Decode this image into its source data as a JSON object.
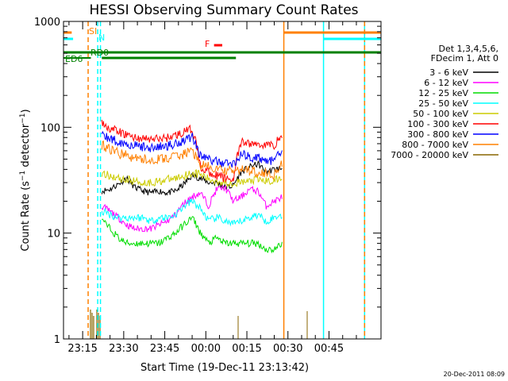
{
  "chart_data": {
    "type": "line",
    "title": "HESSI Observing Summary Count Rates",
    "xlabel": "Start Time (19-Dec-11 23:13:42)",
    "ylabel_parts": [
      "Count Rate (s",
      "−1",
      " detector",
      "−1",
      ")"
    ],
    "yscale": "log",
    "ylim": [
      1,
      1000
    ],
    "xlim_minutes": [
      23.0,
      92.0
    ],
    "y_ticks": [
      {
        "label": "1",
        "value": 1
      },
      {
        "label": "10",
        "value": 10
      },
      {
        "label": "100",
        "value": 100
      },
      {
        "label": "1000",
        "value": 1000
      }
    ],
    "x_ticks": [
      {
        "label": "23:15",
        "m": 15
      },
      {
        "label": "23:30",
        "m": 30
      },
      {
        "label": "23:45",
        "m": 45
      },
      {
        "label": "00:00",
        "m": 60
      },
      {
        "label": "00:15",
        "m": 75
      },
      {
        "label": "00:30",
        "m": 90
      },
      {
        "label": "00:45",
        "m": 105
      }
    ],
    "legend_header": [
      "Det 1,3,4,5,6,",
      "FDecim 1, Att 0"
    ],
    "series": [
      {
        "name": "3 - 6 keV",
        "color": "#000000",
        "values": [
          25,
          26,
          29,
          33,
          27,
          25,
          24,
          25,
          24,
          25,
          29,
          35,
          33,
          30,
          30,
          27,
          28,
          38,
          42,
          45,
          38,
          40,
          41
        ]
      },
      {
        "name": "6 - 12 keV",
        "color": "#ff00ff",
        "values": [
          18,
          16,
          14,
          12,
          11,
          11,
          11,
          12,
          13,
          15,
          19,
          22,
          24,
          18,
          26,
          27,
          20,
          22,
          26,
          25,
          18,
          20,
          22
        ]
      },
      {
        "name": "12 - 25 keV",
        "color": "#00dd00",
        "values": [
          13,
          11,
          9,
          8,
          8,
          8,
          8,
          8,
          9,
          10,
          12,
          14,
          10,
          8,
          9,
          8,
          8,
          8,
          8,
          8,
          7,
          7,
          8
        ]
      },
      {
        "name": "25 - 50 keV",
        "color": "#00ffff",
        "values": [
          16,
          15,
          14,
          14,
          14,
          14,
          13,
          14,
          14,
          15,
          18,
          20,
          17,
          13,
          14,
          13,
          12,
          13,
          14,
          15,
          13,
          14,
          15
        ]
      },
      {
        "name": "50 - 100 keV",
        "color": "#cccc00",
        "values": [
          36,
          35,
          33,
          32,
          31,
          30,
          30,
          31,
          32,
          33,
          35,
          37,
          36,
          32,
          31,
          30,
          30,
          30,
          31,
          32,
          31,
          31,
          34
        ]
      },
      {
        "name": "100 - 300 keV",
        "color": "#ff0000",
        "values": [
          110,
          98,
          90,
          85,
          80,
          78,
          77,
          78,
          80,
          84,
          90,
          96,
          42,
          38,
          35,
          33,
          32,
          72,
          70,
          69,
          68,
          68,
          85
        ]
      },
      {
        "name": "300 - 800 keV",
        "color": "#0000ff",
        "values": [
          85,
          78,
          73,
          70,
          67,
          65,
          64,
          65,
          67,
          70,
          76,
          82,
          54,
          50,
          47,
          46,
          45,
          55,
          53,
          51,
          49,
          48,
          60
        ]
      },
      {
        "name": "800 - 7000 keV",
        "color": "#ff8000",
        "values": [
          68,
          62,
          57,
          54,
          51,
          50,
          49,
          50,
          51,
          53,
          56,
          60,
          44,
          42,
          40,
          39,
          38,
          40,
          39,
          38,
          37,
          36,
          46
        ]
      },
      {
        "name": "7000 - 20000 keV",
        "color": "#886600",
        "values": [
          1.2
        ]
      }
    ],
    "flag_labels": [
      {
        "text": "SI",
        "color": "#ff8000"
      },
      {
        "text": "N",
        "color": "#00ffff"
      },
      {
        "text": "RD0",
        "color": "#008000"
      },
      {
        "text": "ED6",
        "color": "#008000"
      },
      {
        "text": "F",
        "color": "#ff0000"
      }
    ],
    "vertical_markers": [
      {
        "m": 17,
        "color": "#ff8000",
        "dash": true
      },
      {
        "m": 21.5,
        "color": "#00ffff",
        "dash": true
      },
      {
        "m": 20.5,
        "color": "#00ffff",
        "dash": true
      },
      {
        "m": 88.5,
        "color": "#ff8000",
        "dash": false
      },
      {
        "m": 103,
        "color": "#00ffff",
        "dash": false
      },
      {
        "m": 118,
        "color": "#00ffff",
        "dash": false
      },
      {
        "m": 118,
        "color": "#ff8000",
        "dash": true
      }
    ]
  },
  "footer_timestamp": "20-Dec-2011 08:09"
}
